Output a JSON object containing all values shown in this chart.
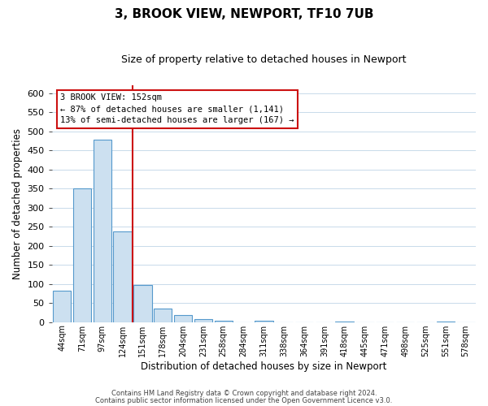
{
  "title": "3, BROOK VIEW, NEWPORT, TF10 7UB",
  "subtitle": "Size of property relative to detached houses in Newport",
  "xlabel": "Distribution of detached houses by size in Newport",
  "ylabel": "Number of detached properties",
  "bar_labels": [
    "44sqm",
    "71sqm",
    "97sqm",
    "124sqm",
    "151sqm",
    "178sqm",
    "204sqm",
    "231sqm",
    "258sqm",
    "284sqm",
    "311sqm",
    "338sqm",
    "364sqm",
    "391sqm",
    "418sqm",
    "445sqm",
    "471sqm",
    "498sqm",
    "525sqm",
    "551sqm",
    "578sqm"
  ],
  "bar_values": [
    83,
    350,
    478,
    237,
    97,
    35,
    18,
    8,
    4,
    0,
    3,
    0,
    0,
    0,
    1,
    0,
    0,
    0,
    0,
    1,
    0
  ],
  "bar_fill_color": "#cce0f0",
  "bar_edge_color": "#5599cc",
  "red_line_after_index": 3,
  "ylim": [
    0,
    620
  ],
  "yticks": [
    0,
    50,
    100,
    150,
    200,
    250,
    300,
    350,
    400,
    450,
    500,
    550,
    600
  ],
  "annotation_title": "3 BROOK VIEW: 152sqm",
  "annotation_line1": "← 87% of detached houses are smaller (1,141)",
  "annotation_line2": "13% of semi-detached houses are larger (167) →",
  "footer_line1": "Contains HM Land Registry data © Crown copyright and database right 2024.",
  "footer_line2": "Contains public sector information licensed under the Open Government Licence v3.0.",
  "background_color": "#ffffff",
  "grid_color": "#c8daea",
  "box_edge_color": "#cc1111",
  "title_fontsize": 11,
  "subtitle_fontsize": 9
}
